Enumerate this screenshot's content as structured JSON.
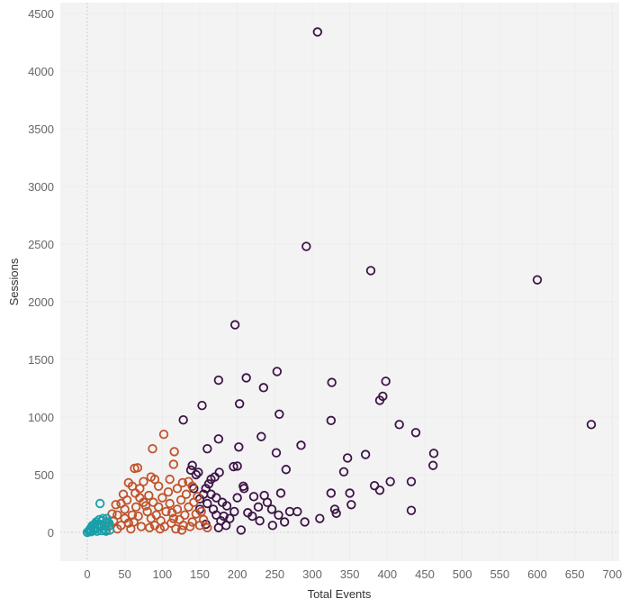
{
  "chart_data": {
    "type": "scatter",
    "xlabel": "Total Events",
    "ylabel": "Sessions",
    "xlim": [
      -36,
      712
    ],
    "ylim": [
      -250,
      4590
    ],
    "xticks": [
      0,
      50,
      100,
      150,
      200,
      250,
      300,
      350,
      400,
      450,
      500,
      550,
      600,
      650,
      700
    ],
    "yticks": [
      0,
      500,
      1000,
      1500,
      2000,
      2500,
      3000,
      3500,
      4000,
      4500
    ],
    "grid": true,
    "legend": "none",
    "marker": "hollow-circle",
    "series": [
      {
        "color": "#3d1447",
        "points": [
          [
            307,
            4340
          ],
          [
            292,
            2480
          ],
          [
            378,
            2270
          ],
          [
            600,
            2190
          ],
          [
            197,
            1800
          ],
          [
            672,
            935
          ],
          [
            175,
            1320
          ],
          [
            212,
            1340
          ],
          [
            253,
            1395
          ],
          [
            235,
            1255
          ],
          [
            153,
            1100
          ],
          [
            203,
            1115
          ],
          [
            326,
            1300
          ],
          [
            398,
            1310
          ],
          [
            394,
            1180
          ],
          [
            390,
            1145
          ],
          [
            325,
            970
          ],
          [
            128,
            975
          ],
          [
            256,
            1025
          ],
          [
            416,
            935
          ],
          [
            438,
            865
          ],
          [
            232,
            830
          ],
          [
            175,
            810
          ],
          [
            462,
            685
          ],
          [
            461,
            580
          ],
          [
            285,
            755
          ],
          [
            252,
            690
          ],
          [
            202,
            740
          ],
          [
            160,
            725
          ],
          [
            371,
            675
          ],
          [
            347,
            645
          ],
          [
            404,
            440
          ],
          [
            432,
            440
          ],
          [
            383,
            405
          ],
          [
            390,
            365
          ],
          [
            342,
            525
          ],
          [
            265,
            545
          ],
          [
            195,
            570
          ],
          [
            200,
            575
          ],
          [
            140,
            580
          ],
          [
            432,
            190
          ],
          [
            325,
            340
          ],
          [
            350,
            340
          ],
          [
            330,
            200
          ],
          [
            332,
            165
          ],
          [
            352,
            240
          ],
          [
            310,
            120
          ],
          [
            290,
            90
          ],
          [
            270,
            180
          ],
          [
            258,
            340
          ],
          [
            240,
            260
          ],
          [
            236,
            320
          ],
          [
            228,
            220
          ],
          [
            222,
            310
          ],
          [
            208,
            400
          ],
          [
            209,
            380
          ],
          [
            214,
            170
          ],
          [
            200,
            300
          ],
          [
            196,
            180
          ],
          [
            190,
            120
          ],
          [
            182,
            140
          ],
          [
            176,
            520
          ],
          [
            170,
            480
          ],
          [
            165,
            460
          ],
          [
            162,
            420
          ],
          [
            158,
            380
          ],
          [
            155,
            330
          ],
          [
            150,
            290
          ],
          [
            148,
            520
          ],
          [
            145,
            500
          ],
          [
            142,
            380
          ],
          [
            138,
            540
          ],
          [
            160,
            250
          ],
          [
            168,
            200
          ],
          [
            172,
            150
          ],
          [
            178,
            100
          ],
          [
            185,
            60
          ],
          [
            205,
            20
          ],
          [
            247,
            60
          ],
          [
            263,
            90
          ],
          [
            280,
            180
          ],
          [
            220,
            140
          ],
          [
            246,
            200
          ],
          [
            255,
            150
          ],
          [
            230,
            100
          ],
          [
            175,
            40
          ],
          [
            158,
            70
          ],
          [
            165,
            330
          ],
          [
            180,
            260
          ],
          [
            186,
            230
          ],
          [
            150,
            200
          ],
          [
            172,
            300
          ]
        ]
      },
      {
        "color": "#c0532a",
        "points": [
          [
            102,
            850
          ],
          [
            87,
            725
          ],
          [
            116,
            700
          ],
          [
            115,
            590
          ],
          [
            67,
            560
          ],
          [
            63,
            555
          ],
          [
            55,
            430
          ],
          [
            75,
            440
          ],
          [
            85,
            480
          ],
          [
            90,
            460
          ],
          [
            110,
            460
          ],
          [
            127,
            430
          ],
          [
            135,
            440
          ],
          [
            60,
            400
          ],
          [
            70,
            380
          ],
          [
            95,
            400
          ],
          [
            120,
            380
          ],
          [
            140,
            400
          ],
          [
            45,
            250
          ],
          [
            50,
            200
          ],
          [
            40,
            150
          ],
          [
            35,
            100
          ],
          [
            30,
            60
          ],
          [
            25,
            20
          ],
          [
            40,
            30
          ],
          [
            55,
            80
          ],
          [
            60,
            150
          ],
          [
            65,
            220
          ],
          [
            70,
            300
          ],
          [
            75,
            260
          ],
          [
            80,
            180
          ],
          [
            85,
            120
          ],
          [
            90,
            60
          ],
          [
            95,
            220
          ],
          [
            100,
            300
          ],
          [
            105,
            180
          ],
          [
            110,
            250
          ],
          [
            115,
            120
          ],
          [
            120,
            200
          ],
          [
            125,
            280
          ],
          [
            130,
            150
          ],
          [
            135,
            220
          ],
          [
            140,
            90
          ],
          [
            145,
            160
          ],
          [
            150,
            60
          ],
          [
            155,
            110
          ],
          [
            160,
            40
          ],
          [
            45,
            60
          ],
          [
            50,
            120
          ],
          [
            58,
            30
          ],
          [
            62,
            90
          ],
          [
            68,
            140
          ],
          [
            72,
            50
          ],
          [
            78,
            230
          ],
          [
            82,
            320
          ],
          [
            88,
            260
          ],
          [
            92,
            150
          ],
          [
            98,
            100
          ],
          [
            103,
            50
          ],
          [
            108,
            350
          ],
          [
            112,
            80
          ],
          [
            118,
            30
          ],
          [
            123,
            110
          ],
          [
            128,
            60
          ],
          [
            132,
            330
          ],
          [
            137,
            50
          ],
          [
            142,
            260
          ],
          [
            147,
            310
          ],
          [
            152,
            180
          ],
          [
            33,
            160
          ],
          [
            38,
            240
          ],
          [
            48,
            330
          ],
          [
            53,
            280
          ],
          [
            64,
            340
          ],
          [
            83,
            40
          ],
          [
            97,
            30
          ],
          [
            113,
            170
          ],
          [
            126,
            20
          ]
        ]
      },
      {
        "color": "#1b9fa9",
        "points": [
          [
            17,
            250
          ],
          [
            0,
            0
          ],
          [
            2,
            10
          ],
          [
            4,
            30
          ],
          [
            6,
            50
          ],
          [
            8,
            20
          ],
          [
            10,
            70
          ],
          [
            12,
            90
          ],
          [
            14,
            40
          ],
          [
            16,
            110
          ],
          [
            18,
            60
          ],
          [
            20,
            100
          ],
          [
            22,
            30
          ],
          [
            24,
            80
          ],
          [
            26,
            120
          ],
          [
            28,
            50
          ],
          [
            30,
            20
          ],
          [
            5,
            5
          ],
          [
            9,
            40
          ],
          [
            13,
            10
          ],
          [
            19,
            15
          ],
          [
            23,
            55
          ],
          [
            27,
            90
          ],
          [
            15,
            75
          ],
          [
            11,
            25
          ],
          [
            21,
            120
          ],
          [
            25,
            10
          ],
          [
            7,
            60
          ],
          [
            3,
            20
          ],
          [
            29,
            80
          ]
        ]
      }
    ]
  }
}
